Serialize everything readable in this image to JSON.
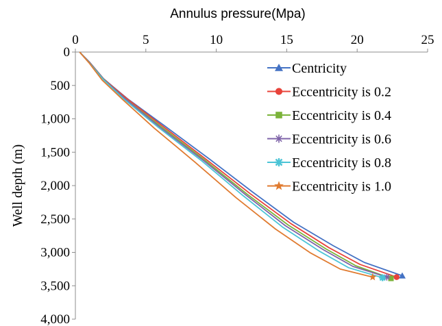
{
  "chart_data": {
    "type": "line",
    "xlabel": "Annulus pressure(Mpa)",
    "ylabel": "Well depth (m)",
    "x_axis_position": "top",
    "y_axis_inverted": true,
    "xlim": [
      0,
      25
    ],
    "ylim": [
      0,
      4000
    ],
    "xticks": [
      0,
      5,
      10,
      15,
      20,
      25
    ],
    "xtick_labels": [
      "0",
      "5",
      "10",
      "15",
      "20",
      "25"
    ],
    "yticks": [
      0,
      500,
      1000,
      1500,
      2000,
      2500,
      3000,
      3500,
      4000
    ],
    "ytick_labels": [
      "0",
      "500",
      "1,000",
      "1,500",
      "2,000",
      "2,500",
      "3,000",
      "3,500",
      "4,000"
    ],
    "grid": false,
    "legend_position": "top-right",
    "series": [
      {
        "name": "Centricity",
        "color": "#4472C4",
        "marker": "triangle",
        "points": [
          [
            0.3,
            0
          ],
          [
            1.0,
            150
          ],
          [
            2.0,
            400
          ],
          [
            3.7,
            700
          ],
          [
            6.3,
            1100
          ],
          [
            9.5,
            1600
          ],
          [
            12.6,
            2100
          ],
          [
            15.5,
            2550
          ],
          [
            18.3,
            2900
          ],
          [
            20.5,
            3150
          ],
          [
            23.2,
            3350
          ]
        ]
      },
      {
        "name": "Eccentricity is 0.2",
        "color": "#E8433A",
        "marker": "circle",
        "points": [
          [
            0.3,
            0
          ],
          [
            1.0,
            155
          ],
          [
            2.0,
            405
          ],
          [
            3.7,
            705
          ],
          [
            6.2,
            1110
          ],
          [
            9.3,
            1610
          ],
          [
            12.4,
            2120
          ],
          [
            15.3,
            2570
          ],
          [
            18.0,
            2930
          ],
          [
            20.2,
            3180
          ],
          [
            22.8,
            3370
          ]
        ]
      },
      {
        "name": "Eccentricity is 0.4",
        "color": "#7BB33A",
        "marker": "square",
        "points": [
          [
            0.3,
            0
          ],
          [
            1.0,
            160
          ],
          [
            2.0,
            410
          ],
          [
            3.6,
            710
          ],
          [
            6.1,
            1120
          ],
          [
            9.2,
            1620
          ],
          [
            12.2,
            2130
          ],
          [
            15.1,
            2590
          ],
          [
            17.8,
            2950
          ],
          [
            19.9,
            3200
          ],
          [
            22.4,
            3390
          ]
        ]
      },
      {
        "name": "Eccentricity is 0.6",
        "color": "#7E63A8",
        "marker": "asterisk",
        "points": [
          [
            0.3,
            0
          ],
          [
            1.0,
            162
          ],
          [
            2.0,
            412
          ],
          [
            3.6,
            712
          ],
          [
            6.0,
            1125
          ],
          [
            9.1,
            1625
          ],
          [
            12.1,
            2140
          ],
          [
            14.9,
            2600
          ],
          [
            17.6,
            2960
          ],
          [
            19.7,
            3210
          ],
          [
            22.1,
            3370
          ]
        ]
      },
      {
        "name": "Eccentricity is 0.8",
        "color": "#4BC4D6",
        "marker": "star-burst",
        "points": [
          [
            0.3,
            0
          ],
          [
            1.0,
            165
          ],
          [
            2.0,
            415
          ],
          [
            3.5,
            715
          ],
          [
            5.9,
            1130
          ],
          [
            9.0,
            1635
          ],
          [
            11.9,
            2150
          ],
          [
            14.7,
            2620
          ],
          [
            17.3,
            2980
          ],
          [
            19.4,
            3230
          ],
          [
            21.8,
            3380
          ]
        ]
      },
      {
        "name": "Eccentricity is 1.0",
        "color": "#E07B30",
        "marker": "star",
        "points": [
          [
            0.3,
            0
          ],
          [
            1.0,
            170
          ],
          [
            1.9,
            420
          ],
          [
            3.4,
            720
          ],
          [
            5.6,
            1140
          ],
          [
            8.5,
            1650
          ],
          [
            11.4,
            2180
          ],
          [
            14.2,
            2650
          ],
          [
            16.7,
            3010
          ],
          [
            18.8,
            3250
          ],
          [
            21.1,
            3370
          ]
        ]
      }
    ]
  }
}
